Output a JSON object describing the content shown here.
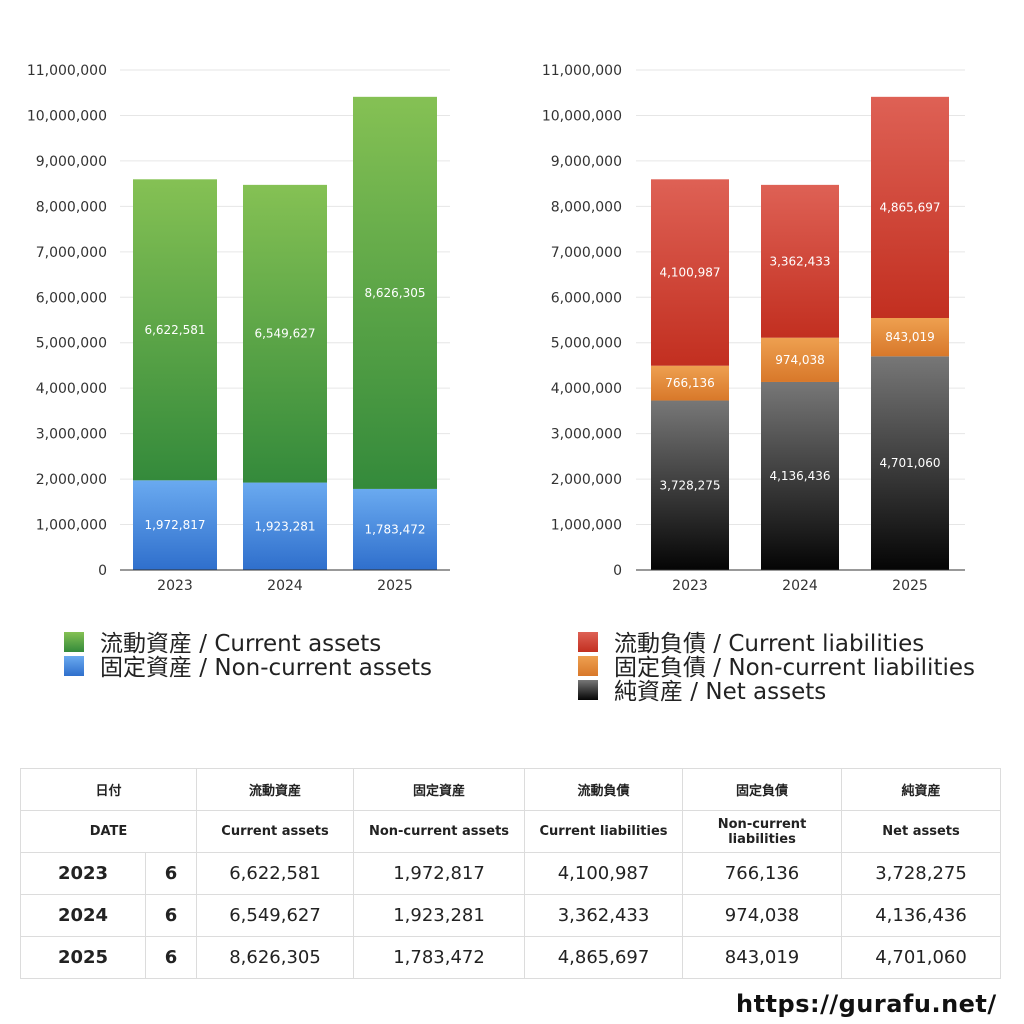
{
  "chart_data": [
    {
      "type": "bar",
      "stacked": true,
      "categories": [
        "2023",
        "2024",
        "2025"
      ],
      "ylim": [
        0,
        11000000
      ],
      "yticks": [
        0,
        1000000,
        2000000,
        3000000,
        4000000,
        5000000,
        6000000,
        7000000,
        8000000,
        9000000,
        10000000,
        11000000
      ],
      "ytick_labels": [
        "0",
        "1,000,000",
        "2,000,000",
        "3,000,000",
        "4,000,000",
        "5,000,000",
        "6,000,000",
        "7,000,000",
        "8,000,000",
        "9,000,000",
        "10,000,000",
        "11,000,000"
      ],
      "grid": true,
      "legend_position": "bottom",
      "series": [
        {
          "name": "固定資産 / Non-current assets",
          "values": [
            1972817,
            1923281,
            1783472
          ],
          "labels": [
            "1,972,817",
            "1,923,281",
            "1,783,472"
          ],
          "color_top": "#6aaaf0",
          "color_bottom": "#2f6fcc"
        },
        {
          "name": "流動資産 / Current assets",
          "values": [
            6622581,
            6549627,
            8626305
          ],
          "labels": [
            "6,622,581",
            "6,549,627",
            "8,626,305"
          ],
          "color_top": "#85c154",
          "color_bottom": "#348a3b"
        }
      ],
      "legend_order": [
        1,
        0
      ]
    },
    {
      "type": "bar",
      "stacked": true,
      "categories": [
        "2023",
        "2024",
        "2025"
      ],
      "ylim": [
        0,
        11000000
      ],
      "yticks": [
        0,
        1000000,
        2000000,
        3000000,
        4000000,
        5000000,
        6000000,
        7000000,
        8000000,
        9000000,
        10000000,
        11000000
      ],
      "ytick_labels": [
        "0",
        "1,000,000",
        "2,000,000",
        "3,000,000",
        "4,000,000",
        "5,000,000",
        "6,000,000",
        "7,000,000",
        "8,000,000",
        "9,000,000",
        "10,000,000",
        "11,000,000"
      ],
      "grid": true,
      "legend_position": "bottom",
      "series": [
        {
          "name": "純資産 / Net assets",
          "values": [
            3728275,
            4136436,
            4701060
          ],
          "labels": [
            "3,728,275",
            "4,136,436",
            "4,701,060"
          ],
          "color_top": "#777777",
          "color_bottom": "#050505"
        },
        {
          "name": "固定負債 / Non-current liabilities",
          "values": [
            766136,
            974038,
            843019
          ],
          "labels": [
            "766,136",
            "974,038",
            "843,019"
          ],
          "color_top": "#eea050",
          "color_bottom": "#d8782a"
        },
        {
          "name": "流動負債 / Current liabilities",
          "values": [
            4100987,
            3362433,
            4865697
          ],
          "labels": [
            "4,100,987",
            "3,362,433",
            "4,865,697"
          ],
          "color_top": "#de6155",
          "color_bottom": "#c22f20"
        }
      ],
      "legend_order": [
        2,
        1,
        0
      ]
    }
  ],
  "table": {
    "header_ja": [
      "日付",
      "流動資産",
      "固定資産",
      "流動負債",
      "固定負債",
      "純資産"
    ],
    "header_en": [
      "DATE",
      "Current assets",
      "Non-current assets",
      "Current liabilities",
      "Non-current liabilities",
      "Net assets"
    ],
    "rows": [
      {
        "year": "2023",
        "month": "6",
        "cells": [
          "6,622,581",
          "1,972,817",
          "4,100,987",
          "766,136",
          "3,728,275"
        ]
      },
      {
        "year": "2024",
        "month": "6",
        "cells": [
          "6,549,627",
          "1,923,281",
          "3,362,433",
          "974,038",
          "4,136,436"
        ]
      },
      {
        "year": "2025",
        "month": "6",
        "cells": [
          "8,626,305",
          "1,783,472",
          "4,865,697",
          "843,019",
          "4,701,060"
        ]
      }
    ]
  },
  "site_url": "https://gurafu.net/"
}
